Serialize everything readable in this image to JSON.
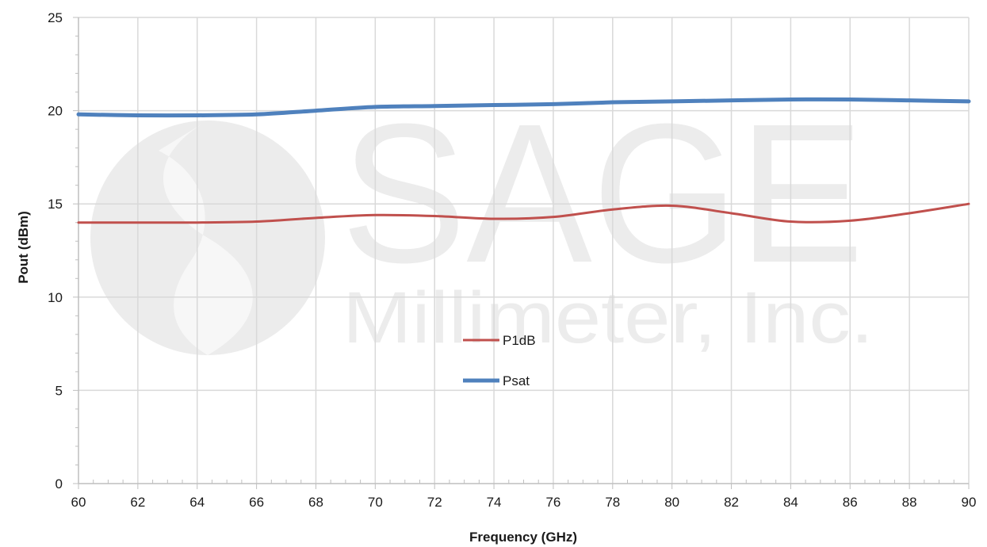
{
  "watermark": {
    "brand": "SAGE",
    "subtitle": "Millimeter, Inc.",
    "color": "#ececec"
  },
  "chart_data": {
    "type": "line",
    "xlabel": "Frequency (GHz)",
    "ylabel": "Pout (dBm)",
    "xlim": [
      60,
      90
    ],
    "ylim": [
      0,
      25
    ],
    "xticks": [
      60,
      62,
      64,
      66,
      68,
      70,
      72,
      74,
      76,
      78,
      80,
      82,
      84,
      86,
      88,
      90
    ],
    "yticks": [
      0,
      5,
      10,
      15,
      20,
      25
    ],
    "grid": true,
    "legend_placement": "center",
    "series": [
      {
        "name": "P1dB",
        "color": "#c0504d",
        "x": [
          60,
          62,
          64,
          66,
          68,
          70,
          72,
          74,
          76,
          78,
          80,
          82,
          84,
          86,
          88,
          90
        ],
        "y": [
          14.0,
          14.0,
          14.0,
          14.05,
          14.25,
          14.4,
          14.35,
          14.2,
          14.3,
          14.7,
          14.9,
          14.5,
          14.05,
          14.1,
          14.5,
          15.0
        ]
      },
      {
        "name": "Psat",
        "color": "#4f81bd",
        "x": [
          60,
          62,
          64,
          66,
          68,
          70,
          72,
          74,
          76,
          78,
          80,
          82,
          84,
          86,
          88,
          90
        ],
        "y": [
          19.8,
          19.75,
          19.75,
          19.8,
          20.0,
          20.2,
          20.25,
          20.3,
          20.35,
          20.45,
          20.5,
          20.55,
          20.6,
          20.6,
          20.55,
          20.5
        ]
      }
    ]
  }
}
